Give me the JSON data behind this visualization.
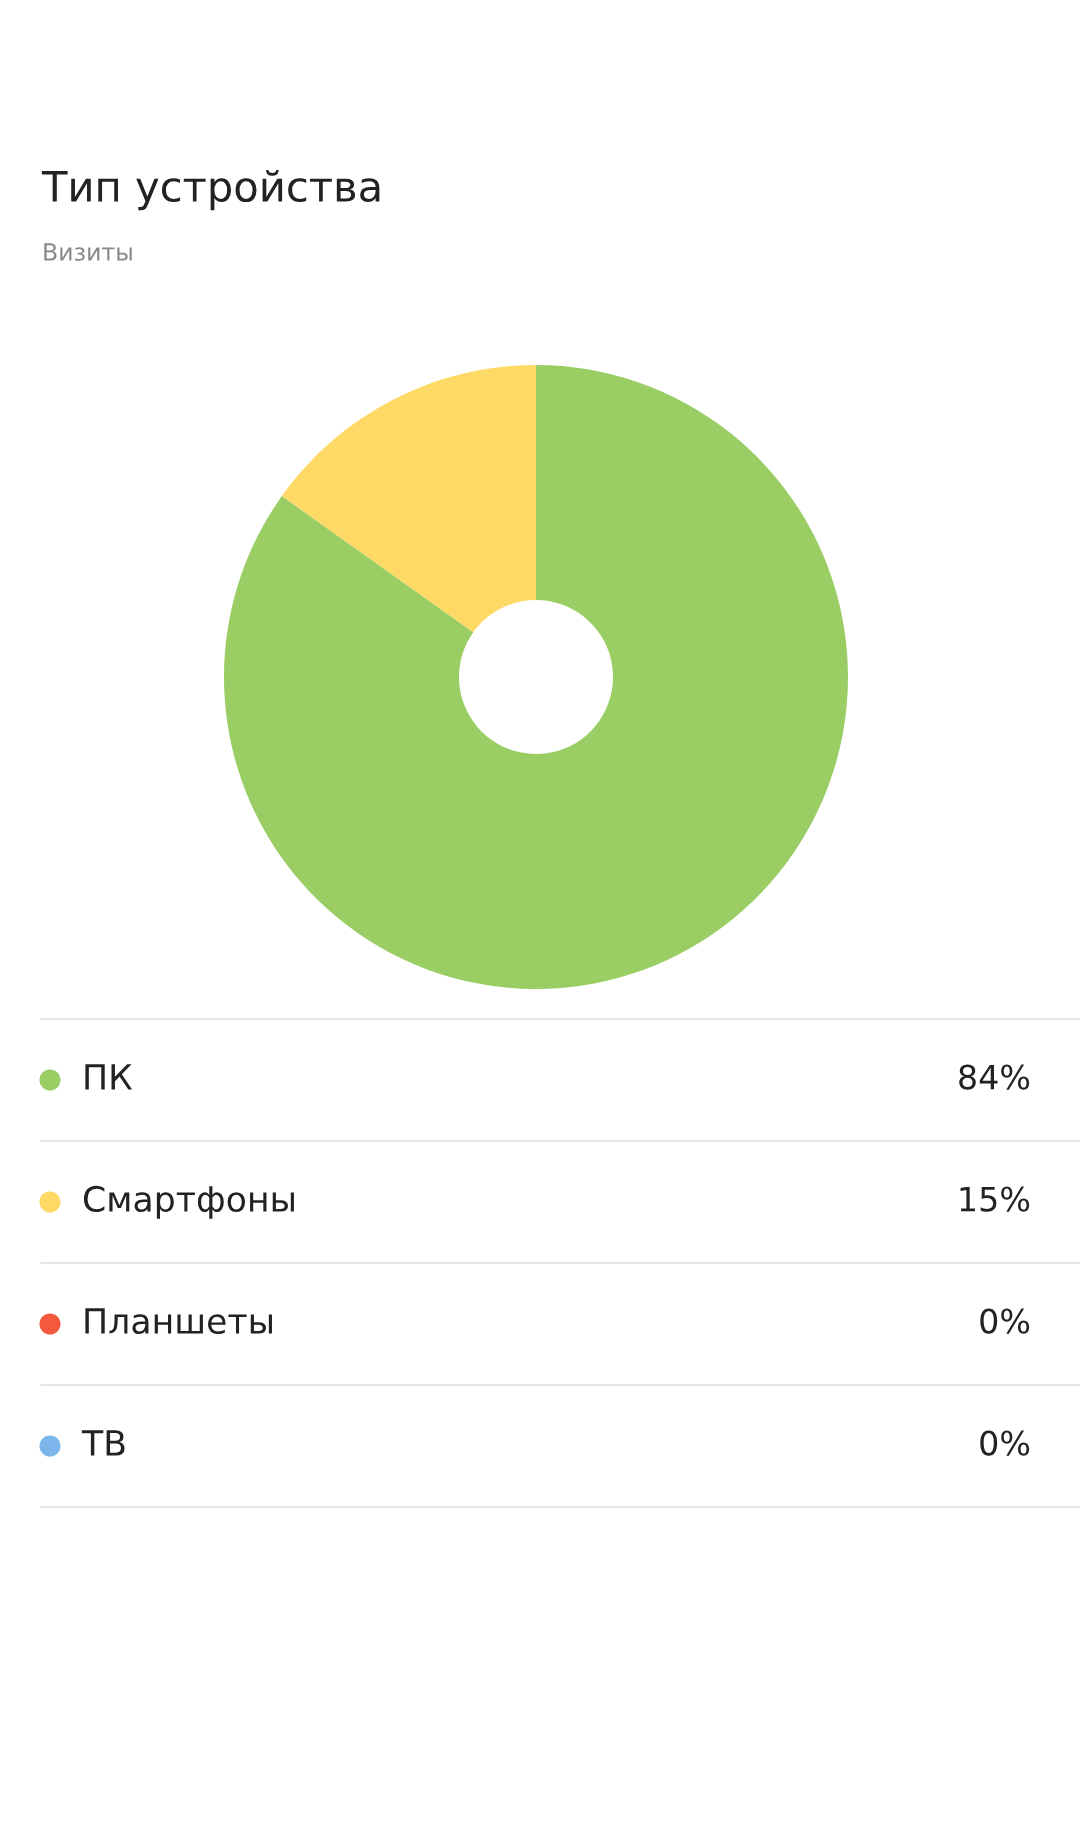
{
  "chart_data": {
    "type": "donut",
    "title": "Тип устройства",
    "subtitle": "Визиты",
    "categories": [
      "ПК",
      "Смартфоны",
      "Планшеты",
      "ТВ"
    ],
    "values": [
      84,
      15,
      0,
      0
    ],
    "colors": [
      "#9acd64",
      "#ffd966",
      "#f5593d",
      "#7cb5ec"
    ],
    "value_labels": [
      "84%",
      "15%",
      "0%",
      "0%"
    ],
    "legend": "bottom"
  }
}
